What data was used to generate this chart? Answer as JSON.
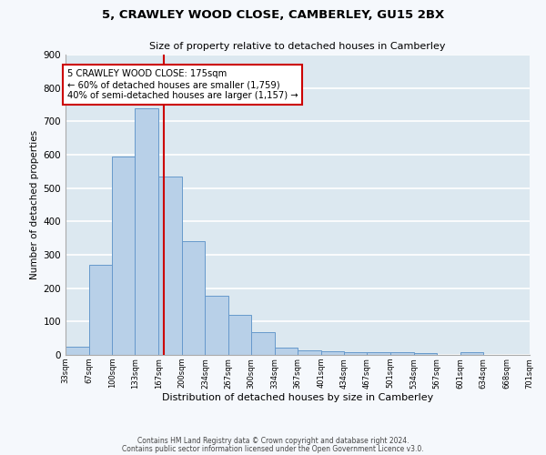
{
  "title": "5, CRAWLEY WOOD CLOSE, CAMBERLEY, GU15 2BX",
  "subtitle": "Size of property relative to detached houses in Camberley",
  "xlabel": "Distribution of detached houses by size in Camberley",
  "ylabel": "Number of detached properties",
  "bar_color": "#b8d0e8",
  "bar_edge_color": "#6699cc",
  "background_color": "#dce8f0",
  "fig_background": "#f5f8fc",
  "grid_color": "#ffffff",
  "bin_edges": [
    33,
    67,
    100,
    133,
    167,
    200,
    234,
    267,
    300,
    334,
    367,
    401,
    434,
    467,
    501,
    534,
    567,
    601,
    634,
    668,
    701
  ],
  "bin_labels": [
    "33sqm",
    "67sqm",
    "100sqm",
    "133sqm",
    "167sqm",
    "200sqm",
    "234sqm",
    "267sqm",
    "300sqm",
    "334sqm",
    "367sqm",
    "401sqm",
    "434sqm",
    "467sqm",
    "501sqm",
    "534sqm",
    "567sqm",
    "601sqm",
    "634sqm",
    "668sqm",
    "701sqm"
  ],
  "counts": [
    25,
    270,
    595,
    740,
    535,
    340,
    178,
    120,
    68,
    22,
    14,
    10,
    8,
    7,
    7,
    5,
    0,
    8,
    0,
    0
  ],
  "vline_x": 175,
  "vline_color": "#cc0000",
  "annotation_line1": "5 CRAWLEY WOOD CLOSE: 175sqm",
  "annotation_line2": "← 60% of detached houses are smaller (1,759)",
  "annotation_line3": "40% of semi-detached houses are larger (1,157) →",
  "annotation_box_color": "#cc0000",
  "ylim": [
    0,
    900
  ],
  "yticks": [
    0,
    100,
    200,
    300,
    400,
    500,
    600,
    700,
    800,
    900
  ],
  "footer_line1": "Contains HM Land Registry data © Crown copyright and database right 2024.",
  "footer_line2": "Contains public sector information licensed under the Open Government Licence v3.0."
}
